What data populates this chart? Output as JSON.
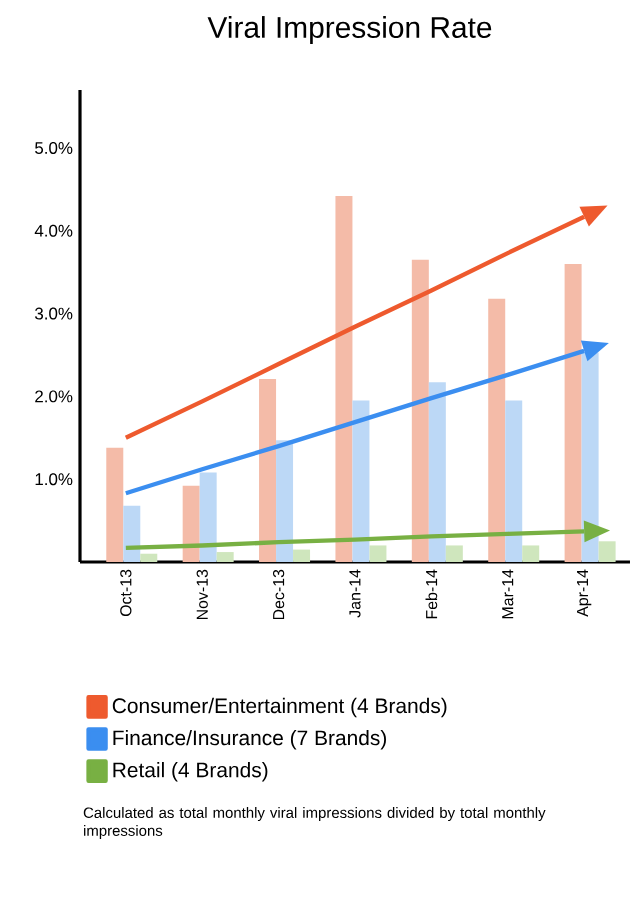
{
  "chart_data": {
    "type": "bar",
    "title": "Viral Impression Rate",
    "categories": [
      "Oct-13",
      "Nov-13",
      "Dec-13",
      "Jan-14",
      "Feb-14",
      "Mar-14",
      "Apr-14"
    ],
    "series": [
      {
        "color": "#f4bba8",
        "values": [
          1.38,
          0.92,
          2.21,
          4.42,
          3.65,
          3.18,
          3.6
        ]
      },
      {
        "color": "#bcd8f6",
        "values": [
          0.68,
          1.08,
          1.47,
          1.95,
          2.17,
          1.95,
          2.53
        ]
      },
      {
        "color": "#cfe6bd",
        "values": [
          0.1,
          0.12,
          0.15,
          0.2,
          0.2,
          0.2,
          0.25
        ]
      },
      {
        "name": "Consumer/Entertainment (4 Brands)",
        "type": "line",
        "color": "#ee5a2e",
        "values": [
          1.5,
          1.94,
          2.39,
          2.84,
          3.28,
          3.73,
          4.17
        ]
      },
      {
        "name": "Finance/Insurance (7 Brands)",
        "type": "line",
        "color": "#3b8ef0",
        "values": [
          0.83,
          1.12,
          1.4,
          1.69,
          1.98,
          2.26,
          2.55
        ]
      },
      {
        "name": "Retail (4 Brands)",
        "type": "line",
        "color": "#78b043",
        "values": [
          0.17,
          0.2,
          0.24,
          0.27,
          0.31,
          0.34,
          0.37
        ]
      }
    ],
    "ylim": [
      0,
      5.7
    ],
    "yticks": [
      {
        "value": 1,
        "label": "1.0%"
      },
      {
        "value": 2,
        "label": "2.0%"
      },
      {
        "value": 3,
        "label": "3.0%"
      },
      {
        "value": 4,
        "label": "4.0%"
      },
      {
        "value": 5,
        "label": "5.0%"
      }
    ],
    "legend": "bottom",
    "annotations": [
      "Calculated as total monthly viral impressions divided by total monthly impressions"
    ]
  }
}
